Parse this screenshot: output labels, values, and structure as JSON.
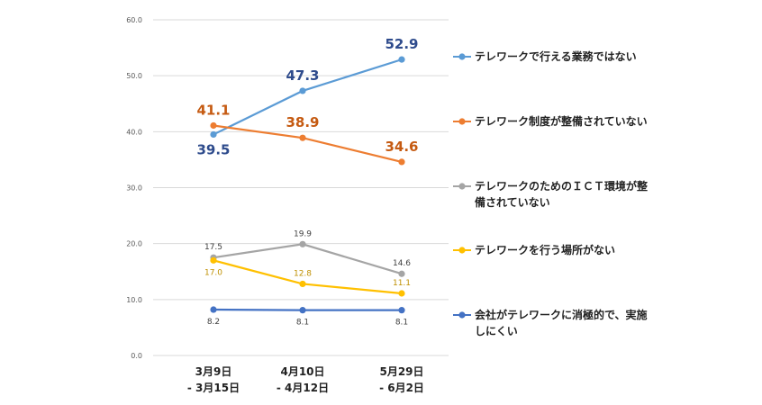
{
  "chart_data": {
    "type": "line",
    "categories": [
      "3月9日\n- 3月15日",
      "4月10日\n- 4月12日",
      "5月29日\n- 6月2日"
    ],
    "y_ticks": [
      "0.0",
      "10.0",
      "20.0",
      "30.0",
      "40.0",
      "50.0",
      "60.0"
    ],
    "ylim": [
      0,
      60
    ],
    "grid": true,
    "legend_position": "right",
    "series": [
      {
        "name": "テレワークで行える業務ではない",
        "values": [
          39.5,
          47.3,
          52.9
        ],
        "labels": [
          "39.5",
          "47.3",
          "52.9"
        ],
        "color": "#5B9BD5",
        "label_color": "#2E4B8C",
        "label_size": "big",
        "label_pos": [
          "below",
          "above",
          "above"
        ]
      },
      {
        "name": "テレワーク制度が整備されていない",
        "values": [
          41.1,
          38.9,
          34.6
        ],
        "labels": [
          "41.1",
          "38.9",
          "34.6"
        ],
        "color": "#ED7D31",
        "label_color": "#C55A11",
        "label_size": "big",
        "label_pos": [
          "above",
          "above",
          "above"
        ]
      },
      {
        "name": "テレワークのためのＩＣＴ環境が整備されていない",
        "values": [
          17.5,
          19.9,
          14.6
        ],
        "labels": [
          "17.5",
          "19.9",
          "14.6"
        ],
        "color": "#A5A5A5",
        "label_color": "#404040",
        "label_size": "small",
        "label_pos": [
          "above",
          "above",
          "above"
        ]
      },
      {
        "name": "テレワークを行う場所がない",
        "values": [
          17.0,
          12.8,
          11.1
        ],
        "labels": [
          "17.0",
          "12.8",
          "11.1"
        ],
        "color": "#FFC000",
        "label_color": "#BF9000",
        "label_size": "small",
        "label_pos": [
          "below",
          "above",
          "above"
        ]
      },
      {
        "name": "会社がテレワークに消極的で、実施しにくい",
        "values": [
          8.2,
          8.1,
          8.1
        ],
        "labels": [
          "8.2",
          "8.1",
          "8.1"
        ],
        "color": "#4472C4",
        "label_color": "#404040",
        "label_size": "small",
        "label_pos": [
          "below",
          "below",
          "below"
        ]
      }
    ],
    "legend_lines": [
      [
        "テレワークで行える業務ではない"
      ],
      [
        "テレワーク制度が整備されていない"
      ],
      [
        "テレワークのためのＩＣＴ環境が整",
        "備されていない"
      ],
      [
        "テレワークを行う場所がない"
      ],
      [
        "会社がテレワークに消極的で、実施",
        "しにくい"
      ]
    ]
  }
}
